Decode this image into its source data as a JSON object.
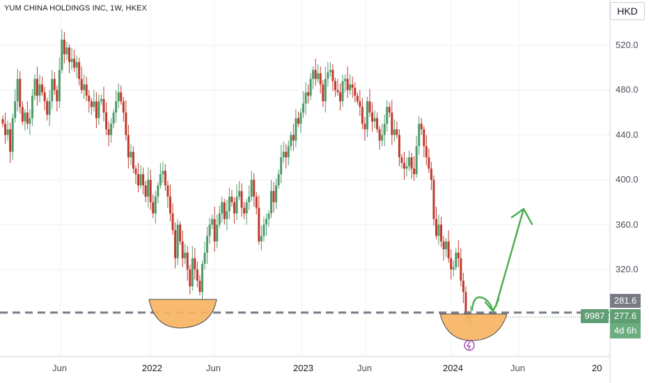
{
  "header": {
    "title": "YUM CHINA HOLDINGS INC, 1W, HKEX",
    "currency": "HKD"
  },
  "price_axis": {
    "ticks": [
      "520.0",
      "480.0",
      "440.0",
      "400.0",
      "360.0",
      "320.0"
    ]
  },
  "time_axis": {
    "labels": [
      "Jun",
      "2022",
      "Jun",
      "2023",
      "Jun",
      "2024",
      "Jun",
      "20"
    ]
  },
  "tags": {
    "level": "281.6",
    "ticker": "9987",
    "last": "277.6",
    "countdown": "4d 6h"
  },
  "colors": {
    "up": "#26a69a",
    "down": "#ef5350",
    "candle_up": "#4c9a6a",
    "candle_down": "#c0392b",
    "bowl": "#f7b563",
    "arrow": "#4caf50",
    "dash": "#787b86",
    "last_tag": "#5f9e73",
    "level_tag": "#787b86"
  },
  "chart_data": {
    "type": "candlestick",
    "title": "YUM CHINA HOLDINGS INC, 1W, HKEX",
    "ylabel": "HKD",
    "ylim": [
      228,
      548
    ],
    "y_ticks": [
      520,
      480,
      440,
      400,
      360,
      320
    ],
    "x_ticks": [
      "Jun",
      "2022",
      "Jun",
      "2023",
      "Jun",
      "2024",
      "Jun",
      "20"
    ],
    "horizontal_level": 281.6,
    "last_price": 277.6,
    "series": [
      {
        "values": [
          450,
          440,
          445,
          425,
          455,
          470,
          490,
          465,
          452,
          460,
          450,
          455,
          475,
          490,
          475,
          485,
          478,
          470,
          458,
          470,
          490,
          480,
          470,
          498,
          525,
          512,
          518,
          505,
          508,
          500,
          505,
          490,
          480,
          485,
          475,
          470,
          465,
          470,
          455,
          470,
          472,
          460,
          445,
          440,
          450,
          460,
          470,
          478,
          470,
          460,
          440,
          420,
          425,
          410,
          405,
          395,
          405,
          395,
          385,
          400,
          380,
          370,
          385,
          395,
          405,
          408,
          395,
          385,
          370,
          355,
          330,
          360,
          345,
          330,
          335,
          320,
          305,
          330,
          320,
          310,
          300,
          325,
          335,
          350,
          360,
          365,
          345,
          360,
          370,
          380,
          365,
          372,
          385,
          380,
          370,
          385,
          390,
          375,
          370,
          380,
          385,
          400,
          385,
          375,
          345,
          350,
          360,
          365,
          370,
          390,
          380,
          395,
          405,
          420,
          425,
          420,
          430,
          440,
          435,
          455,
          450,
          460,
          468,
          478,
          475,
          490,
          498,
          490,
          495,
          485,
          470,
          490,
          496,
          498,
          488,
          480,
          478,
          470,
          488,
          490,
          480,
          485,
          482,
          475,
          470,
          465,
          450,
          445,
          470,
          460,
          452,
          455,
          445,
          435,
          440,
          450,
          465,
          460,
          440,
          445,
          440,
          420,
          415,
          410,
          412,
          420,
          410,
          405,
          430,
          450,
          445,
          430,
          420,
          410,
          400,
          365,
          350,
          360,
          345,
          338,
          345,
          330,
          320,
          322,
          335,
          330,
          310,
          300,
          280,
          276,
          277.6
        ]
      }
    ]
  }
}
